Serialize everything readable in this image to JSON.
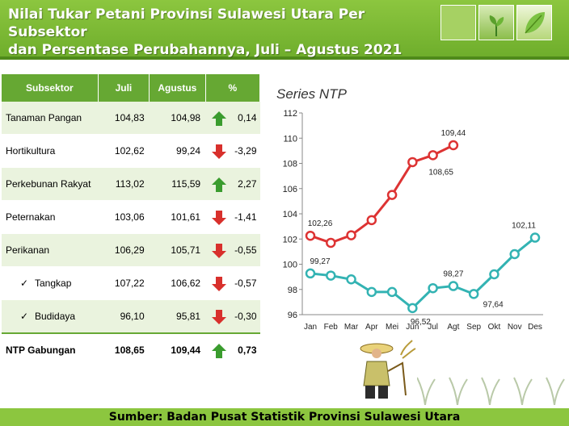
{
  "title_line1": "Nilai Tukar Petani Provinsi Sulawesi Utara Per Subsektor",
  "title_line2": "dan Persentase Perubahannya, Juli – Agustus 2021",
  "source": "Sumber: Badan Pusat Statistik Provinsi Sulawesi Utara",
  "table": {
    "headers": [
      "Subsektor",
      "Juli",
      "Agustus",
      "%"
    ],
    "rows": [
      {
        "name": "Tanaman Pangan",
        "juli": "104,83",
        "agustus": "104,98",
        "pct": "0,14",
        "trend": "up"
      },
      {
        "name": "Hortikultura",
        "juli": "102,62",
        "agustus": "99,24",
        "pct": "-3,29",
        "trend": "down"
      },
      {
        "name": "Perkebunan Rakyat",
        "juli": "113,02",
        "agustus": "115,59",
        "pct": "2,27",
        "trend": "up"
      },
      {
        "name": "Peternakan",
        "juli": "103,06",
        "agustus": "101,61",
        "pct": "-1,41",
        "trend": "down"
      },
      {
        "name": "Perikanan",
        "juli": "106,29",
        "agustus": "105,71",
        "pct": "-0,55",
        "trend": "down"
      },
      {
        "name": "Tangkap",
        "juli": "107,22",
        "agustus": "106,62",
        "pct": "-0,57",
        "trend": "down"
      },
      {
        "name": "Budidaya",
        "juli": "96,10",
        "agustus": "95,81",
        "pct": "-0,30",
        "trend": "down"
      }
    ],
    "total": {
      "name": "NTP Gabungan",
      "juli": "108,65",
      "agustus": "109,44",
      "pct": "0,73",
      "trend": "up"
    }
  },
  "colors": {
    "up": "#3a9c2e",
    "down": "#d8302c",
    "series2021": "#dd3333",
    "series2020": "#33b3b3",
    "header": "#66a833"
  },
  "chart_data": {
    "type": "line",
    "title": "Series  NTP",
    "categories": [
      "Jan",
      "Feb",
      "Mar",
      "Apr",
      "Mei",
      "Jun",
      "Jul",
      "Agt",
      "Sep",
      "Okt",
      "Nov",
      "Des"
    ],
    "ylim": [
      96,
      112
    ],
    "yticks": [
      96,
      98,
      100,
      102,
      104,
      106,
      108,
      110,
      112
    ],
    "grid": false,
    "series": [
      {
        "values": [
          102.26,
          101.7,
          102.3,
          103.5,
          105.5,
          108.1,
          108.65,
          109.44,
          null,
          null,
          null,
          null
        ],
        "color": "#dd3333",
        "labels": [
          {
            "i": 0,
            "text": "102,26"
          },
          {
            "i": 6,
            "text": "108,65"
          },
          {
            "i": 7,
            "text": "109,44"
          }
        ]
      },
      {
        "values": [
          99.27,
          99.1,
          98.8,
          97.8,
          97.8,
          96.52,
          98.1,
          98.27,
          97.64,
          99.2,
          100.8,
          102.11
        ],
        "color": "#33b3b3",
        "labels": [
          {
            "i": 0,
            "text": "99,27"
          },
          {
            "i": 5,
            "text": "96,52"
          },
          {
            "i": 7,
            "text": "98,27"
          },
          {
            "i": 8,
            "text": "97,64"
          },
          {
            "i": 11,
            "text": "102,11"
          }
        ]
      }
    ]
  }
}
